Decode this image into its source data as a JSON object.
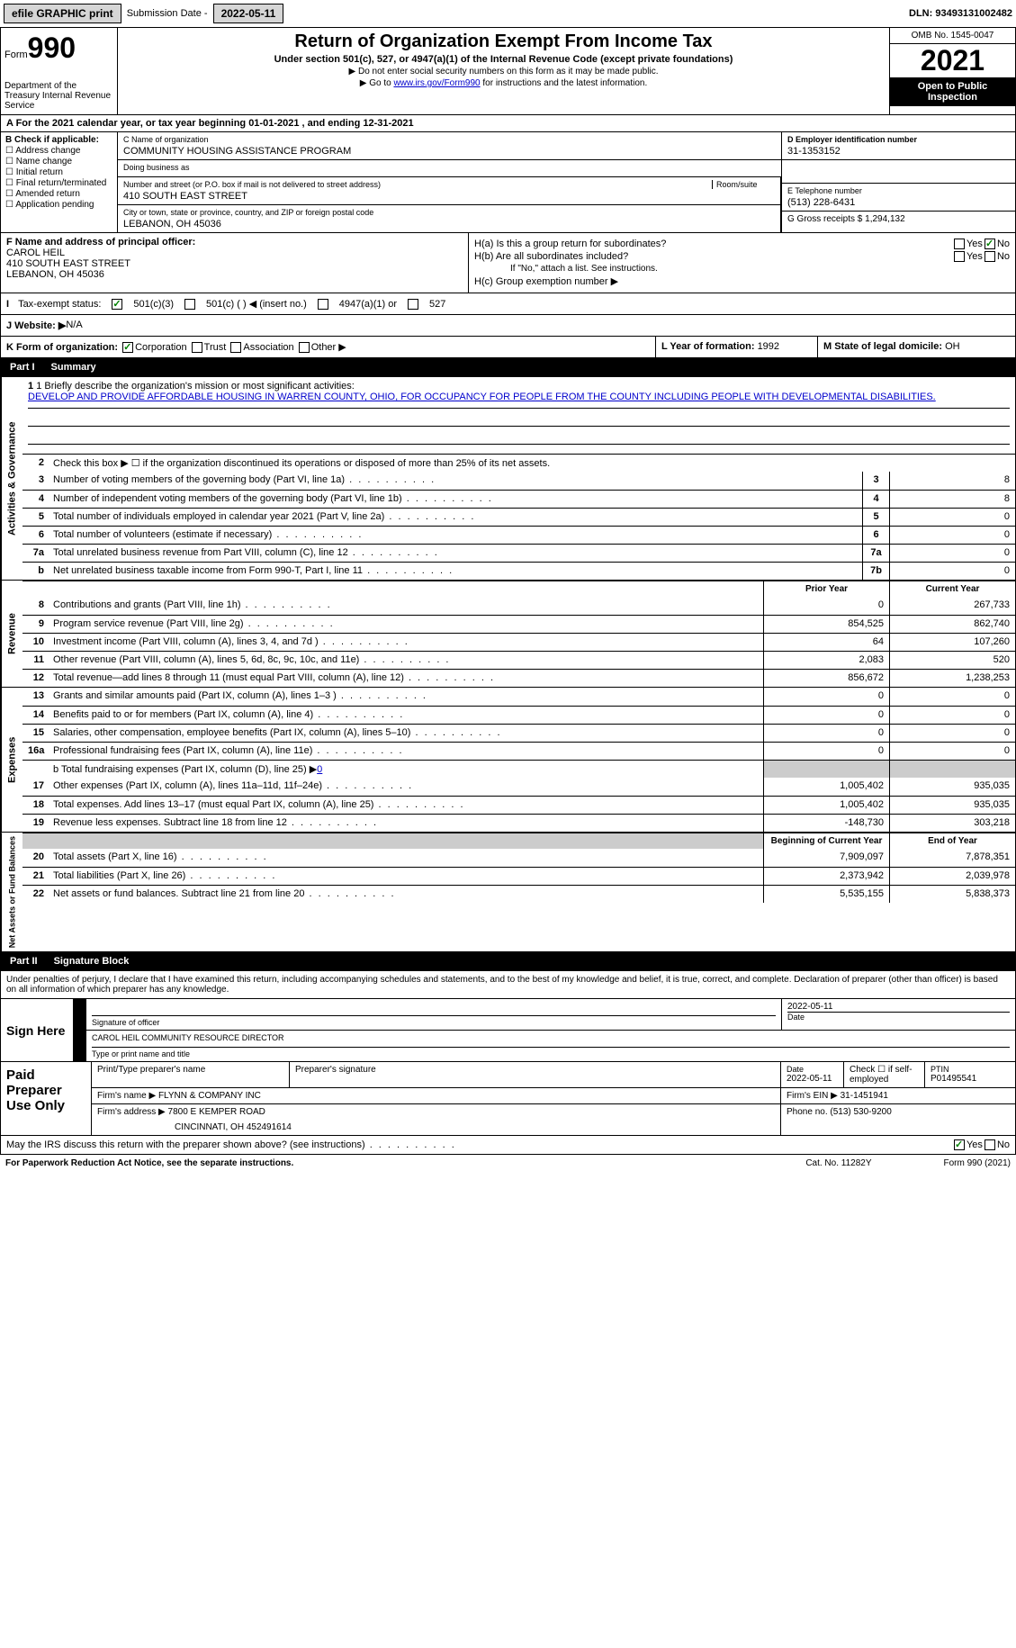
{
  "topbar": {
    "efile": "efile GRAPHIC print",
    "submission_label": "Submission Date - ",
    "submission_date": "2022-05-11",
    "dln_label": "DLN: ",
    "dln": "93493131002482"
  },
  "header": {
    "form_word": "Form",
    "form_num": "990",
    "dept": "Department of the Treasury\nInternal Revenue Service",
    "title": "Return of Organization Exempt From Income Tax",
    "subtitle": "Under section 501(c), 527, or 4947(a)(1) of the Internal Revenue Code (except private foundations)",
    "note1": "▶ Do not enter social security numbers on this form as it may be made public.",
    "note2_pre": "▶ Go to ",
    "note2_link": "www.irs.gov/Form990",
    "note2_post": " for instructions and the latest information.",
    "omb": "OMB No. 1545-0047",
    "year": "2021",
    "inspection": "Open to Public Inspection"
  },
  "row_a": "A For the 2021 calendar year, or tax year beginning 01-01-2021   , and ending 12-31-2021",
  "col_b": {
    "header": "B Check if applicable:",
    "opts": [
      "Address change",
      "Name change",
      "Initial return",
      "Final return/terminated",
      "Amended return",
      "Application pending"
    ]
  },
  "col_c": {
    "name_label": "C Name of organization",
    "name": "COMMUNITY HOUSING ASSISTANCE PROGRAM",
    "dba_label": "Doing business as",
    "dba": "",
    "street_label": "Number and street (or P.O. box if mail is not delivered to street address)",
    "room_label": "Room/suite",
    "street": "410 SOUTH EAST STREET",
    "city_label": "City or town, state or province, country, and ZIP or foreign postal code",
    "city": "LEBANON, OH  45036"
  },
  "col_d": {
    "ein_label": "D Employer identification number",
    "ein": "31-1353152",
    "tel_label": "E Telephone number",
    "tel": "(513) 228-6431",
    "gross_label": "G Gross receipts $ ",
    "gross": "1,294,132"
  },
  "row_f": {
    "label": "F  Name and address of principal officer:",
    "name": "CAROL HEIL",
    "street": "410 SOUTH EAST STREET",
    "city": "LEBANON, OH  45036"
  },
  "row_h": {
    "a": "H(a)  Is this a group return for subordinates?",
    "b": "H(b)  Are all subordinates included?",
    "b_note": "If \"No,\" attach a list. See instructions.",
    "c": "H(c)  Group exemption number ▶"
  },
  "row_i": {
    "label": "Tax-exempt status:",
    "o1": "501(c)(3)",
    "o2": "501(c) (   ) ◀ (insert no.)",
    "o3": "4947(a)(1) or",
    "o4": "527"
  },
  "row_j": {
    "label": "J  Website: ▶",
    "val": "  N/A"
  },
  "row_k": {
    "label": "K Form of organization:",
    "opts": [
      "Corporation",
      "Trust",
      "Association",
      "Other ▶"
    ],
    "l_label": "L Year of formation: ",
    "l_val": "1992",
    "m_label": "M State of legal domicile: ",
    "m_val": "OH"
  },
  "part1": {
    "num": "Part I",
    "title": "Summary"
  },
  "summary": {
    "side1": "Activities & Governance",
    "l1_label": "1  Briefly describe the organization's mission or most significant activities:",
    "l1_text": "DEVELOP AND PROVIDE AFFORDABLE HOUSING IN WARREN COUNTY, OHIO, FOR OCCUPANCY FOR PEOPLE FROM THE COUNTY INCLUDING PEOPLE WITH DEVELOPMENTAL DISABILITIES.",
    "l2": "Check this box ▶ ☐  if the organization discontinued its operations or disposed of more than 25% of its net assets.",
    "lines_gov": [
      {
        "n": "3",
        "d": "Number of voting members of the governing body (Part VI, line 1a)",
        "b": "3",
        "v": "8"
      },
      {
        "n": "4",
        "d": "Number of independent voting members of the governing body (Part VI, line 1b)",
        "b": "4",
        "v": "8"
      },
      {
        "n": "5",
        "d": "Total number of individuals employed in calendar year 2021 (Part V, line 2a)",
        "b": "5",
        "v": "0"
      },
      {
        "n": "6",
        "d": "Total number of volunteers (estimate if necessary)",
        "b": "6",
        "v": "0"
      },
      {
        "n": "7a",
        "d": "Total unrelated business revenue from Part VIII, column (C), line 12",
        "b": "7a",
        "v": "0"
      },
      {
        "n": "b",
        "d": "Net unrelated business taxable income from Form 990-T, Part I, line 11",
        "b": "7b",
        "v": "0"
      }
    ],
    "side2": "Revenue",
    "prior_h": "Prior Year",
    "curr_h": "Current Year",
    "lines_rev": [
      {
        "n": "8",
        "d": "Contributions and grants (Part VIII, line 1h)",
        "p": "0",
        "c": "267,733"
      },
      {
        "n": "9",
        "d": "Program service revenue (Part VIII, line 2g)",
        "p": "854,525",
        "c": "862,740"
      },
      {
        "n": "10",
        "d": "Investment income (Part VIII, column (A), lines 3, 4, and 7d )",
        "p": "64",
        "c": "107,260"
      },
      {
        "n": "11",
        "d": "Other revenue (Part VIII, column (A), lines 5, 6d, 8c, 9c, 10c, and 11e)",
        "p": "2,083",
        "c": "520"
      },
      {
        "n": "12",
        "d": "Total revenue—add lines 8 through 11 (must equal Part VIII, column (A), line 12)",
        "p": "856,672",
        "c": "1,238,253"
      }
    ],
    "side3": "Expenses",
    "lines_exp": [
      {
        "n": "13",
        "d": "Grants and similar amounts paid (Part IX, column (A), lines 1–3 )",
        "p": "0",
        "c": "0"
      },
      {
        "n": "14",
        "d": "Benefits paid to or for members (Part IX, column (A), line 4)",
        "p": "0",
        "c": "0"
      },
      {
        "n": "15",
        "d": "Salaries, other compensation, employee benefits (Part IX, column (A), lines 5–10)",
        "p": "0",
        "c": "0"
      },
      {
        "n": "16a",
        "d": "Professional fundraising fees (Part IX, column (A), line 11e)",
        "p": "0",
        "c": "0"
      }
    ],
    "l16b_pre": "b  Total fundraising expenses (Part IX, column (D), line 25) ▶",
    "l16b_val": "0",
    "lines_exp2": [
      {
        "n": "17",
        "d": "Other expenses (Part IX, column (A), lines 11a–11d, 11f–24e)",
        "p": "1,005,402",
        "c": "935,035"
      },
      {
        "n": "18",
        "d": "Total expenses. Add lines 13–17 (must equal Part IX, column (A), line 25)",
        "p": "1,005,402",
        "c": "935,035"
      },
      {
        "n": "19",
        "d": "Revenue less expenses. Subtract line 18 from line 12",
        "p": "-148,730",
        "c": "303,218"
      }
    ],
    "side4": "Net Assets or Fund Balances",
    "begin_h": "Beginning of Current Year",
    "end_h": "End of Year",
    "lines_net": [
      {
        "n": "20",
        "d": "Total assets (Part X, line 16)",
        "p": "7,909,097",
        "c": "7,878,351"
      },
      {
        "n": "21",
        "d": "Total liabilities (Part X, line 26)",
        "p": "2,373,942",
        "c": "2,039,978"
      },
      {
        "n": "22",
        "d": "Net assets or fund balances. Subtract line 21 from line 20",
        "p": "5,535,155",
        "c": "5,838,373"
      }
    ]
  },
  "part2": {
    "num": "Part II",
    "title": "Signature Block"
  },
  "sig": {
    "intro": "Under penalties of perjury, I declare that I have examined this return, including accompanying schedules and statements, and to the best of my knowledge and belief, it is true, correct, and complete. Declaration of preparer (other than officer) is based on all information of which preparer has any knowledge.",
    "sign_here": "Sign Here",
    "sig_label": "Signature of officer",
    "date_val": "2022-05-11",
    "date_label": "Date",
    "name_val": "CAROL HEIL COMMUNITY RESOURCE DIRECTOR",
    "name_label": "Type or print name and title"
  },
  "prep": {
    "label": "Paid Preparer Use Only",
    "r1": {
      "a": "Print/Type preparer's name",
      "b": "Preparer's signature",
      "c_l": "Date",
      "c_v": "2022-05-11",
      "d": "Check ☐ if self-employed",
      "e_l": "PTIN",
      "e_v": "P01495541"
    },
    "r2": {
      "a": "Firm's name    ▶ ",
      "a_v": "FLYNN & COMPANY INC",
      "b": "Firm's EIN ▶ ",
      "b_v": "31-1451941"
    },
    "r3": {
      "a": "Firm's address ▶ ",
      "a_v": "7800 E KEMPER ROAD",
      "a2": "CINCINNATI, OH  452491614",
      "b": "Phone no. ",
      "b_v": "(513) 530-9200"
    }
  },
  "may": "May the IRS discuss this return with the preparer shown above? (see instructions)",
  "footer": {
    "l": "For Paperwork Reduction Act Notice, see the separate instructions.",
    "c": "Cat. No. 11282Y",
    "r": "Form 990 (2021)"
  }
}
